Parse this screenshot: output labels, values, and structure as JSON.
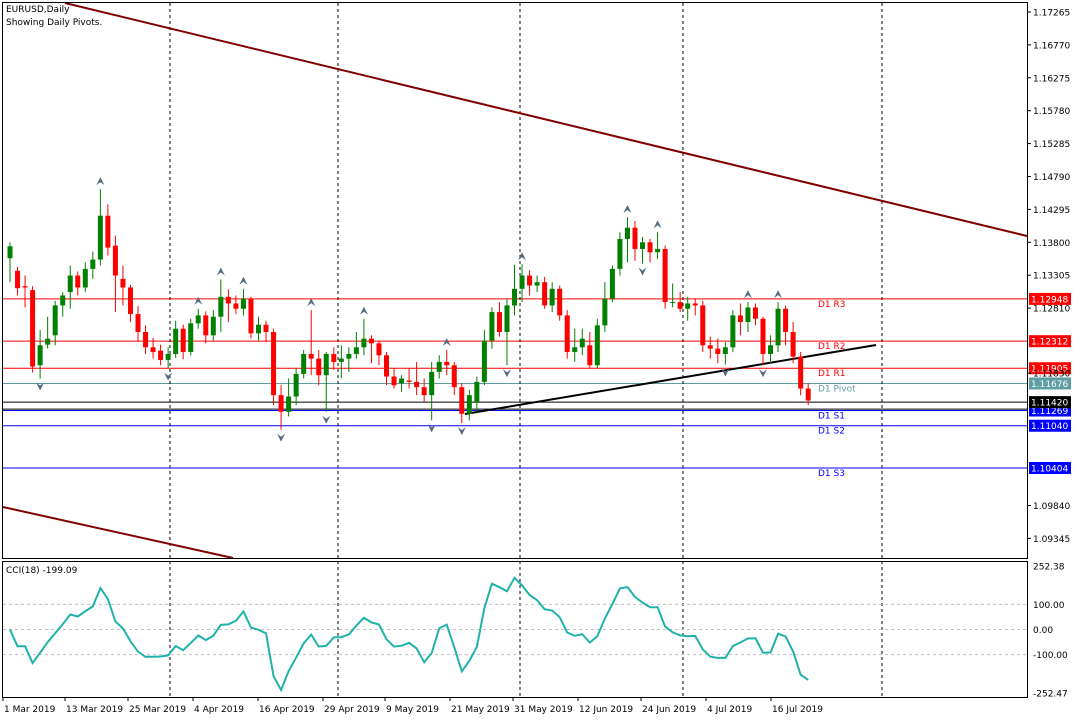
{
  "header": {
    "symbol_line": "EURUSD,Daily",
    "subtitle": "Showing Daily Pivots."
  },
  "indicator": {
    "label": "CCI(18) -199.09",
    "ticks": [
      "252.38",
      "100.00",
      "0.00",
      "-100.00",
      "-252.47"
    ],
    "tick_values": [
      252.38,
      100,
      0,
      -100,
      -252.47
    ],
    "line_color": "#20b2aa"
  },
  "colors": {
    "bull": "#008000",
    "bear": "#ff0000",
    "trendline": "#800000",
    "support_line": "#000000",
    "pivot": "#5f9ea0",
    "resistance": "#ff0000",
    "support": "#0000ff"
  },
  "chart_data": {
    "type": "candlestick",
    "title": "EURUSD,Daily",
    "ylim": [
      1.0905,
      1.174
    ],
    "x_labels": [
      "1 Mar 2019",
      "13 Mar 2019",
      "25 Mar 2019",
      "4 Apr 2019",
      "16 Apr 2019",
      "29 Apr 2019",
      "9 May 2019",
      "21 May 2019",
      "31 May 2019",
      "12 Jun 2019",
      "24 Jun 2019",
      "4 Jul 2019",
      "16 Jul 2019"
    ],
    "y_ticks": [
      "1.17265",
      "1.16770",
      "1.16275",
      "1.15780",
      "1.15285",
      "1.14790",
      "1.14295",
      "1.13800",
      "1.13305",
      "1.12810",
      "1.11830",
      "1.09840",
      "1.09345"
    ],
    "y_tick_values": [
      1.17265,
      1.1677,
      1.16275,
      1.1578,
      1.15285,
      1.1479,
      1.14295,
      1.138,
      1.13305,
      1.1281,
      1.1183,
      1.0984,
      1.09345
    ],
    "pivot_levels": [
      {
        "name": "D1 R3",
        "value": 1.12948,
        "label": "1.12948"
      },
      {
        "name": "D1 R2",
        "value": 1.12312,
        "label": "1.12312"
      },
      {
        "name": "D1 R1",
        "value": 1.11905,
        "label": "1.11905"
      },
      {
        "name": "D1 Pivot",
        "value": 1.11676,
        "label": "1.11676"
      },
      {
        "name": "D1 S1",
        "value": 1.11269,
        "label": "1.11269"
      },
      {
        "name": "D1 S2",
        "value": 1.1104,
        "label": "1.11040"
      },
      {
        "name": "D1 S3",
        "value": 1.10404,
        "label": "1.10404"
      }
    ],
    "current_price": "1.11420",
    "candles": [
      {
        "o": 1.1356,
        "h": 1.138,
        "l": 1.132,
        "c": 1.1374
      },
      {
        "o": 1.1337,
        "h": 1.1343,
        "l": 1.13,
        "c": 1.1311
      },
      {
        "o": 1.1314,
        "h": 1.133,
        "l": 1.1282,
        "c": 1.1312
      },
      {
        "o": 1.1308,
        "h": 1.1314,
        "l": 1.1184,
        "c": 1.1193
      },
      {
        "o": 1.1195,
        "h": 1.1248,
        "l": 1.1175,
        "c": 1.1225
      },
      {
        "o": 1.1226,
        "h": 1.1268,
        "l": 1.122,
        "c": 1.1235
      },
      {
        "o": 1.124,
        "h": 1.1292,
        "l": 1.1225,
        "c": 1.1285
      },
      {
        "o": 1.1285,
        "h": 1.1305,
        "l": 1.1268,
        "c": 1.13
      },
      {
        "o": 1.1305,
        "h": 1.1345,
        "l": 1.128,
        "c": 1.133
      },
      {
        "o": 1.133,
        "h": 1.1336,
        "l": 1.13,
        "c": 1.1312
      },
      {
        "o": 1.1312,
        "h": 1.135,
        "l": 1.1305,
        "c": 1.134
      },
      {
        "o": 1.134,
        "h": 1.1366,
        "l": 1.1325,
        "c": 1.1354
      },
      {
        "o": 1.1354,
        "h": 1.146,
        "l": 1.1345,
        "c": 1.142
      },
      {
        "o": 1.142,
        "h": 1.1437,
        "l": 1.136,
        "c": 1.1372
      },
      {
        "o": 1.1375,
        "h": 1.139,
        "l": 1.1275,
        "c": 1.133
      },
      {
        "o": 1.1325,
        "h": 1.1345,
        "l": 1.1285,
        "c": 1.1312
      },
      {
        "o": 1.1312,
        "h": 1.1316,
        "l": 1.126,
        "c": 1.1272
      },
      {
        "o": 1.1272,
        "h": 1.1284,
        "l": 1.123,
        "c": 1.1245
      },
      {
        "o": 1.1245,
        "h": 1.1255,
        "l": 1.1212,
        "c": 1.1222
      },
      {
        "o": 1.1222,
        "h": 1.1236,
        "l": 1.1205,
        "c": 1.1215
      },
      {
        "o": 1.1217,
        "h": 1.1226,
        "l": 1.1195,
        "c": 1.1203
      },
      {
        "o": 1.1203,
        "h": 1.1222,
        "l": 1.119,
        "c": 1.1212
      },
      {
        "o": 1.1212,
        "h": 1.1262,
        "l": 1.1206,
        "c": 1.125
      },
      {
        "o": 1.125,
        "h": 1.1256,
        "l": 1.1204,
        "c": 1.1215
      },
      {
        "o": 1.1215,
        "h": 1.1265,
        "l": 1.121,
        "c": 1.1258
      },
      {
        "o": 1.1258,
        "h": 1.128,
        "l": 1.125,
        "c": 1.127
      },
      {
        "o": 1.127,
        "h": 1.1276,
        "l": 1.1228,
        "c": 1.124
      },
      {
        "o": 1.124,
        "h": 1.1278,
        "l": 1.1232,
        "c": 1.1268
      },
      {
        "o": 1.1268,
        "h": 1.1324,
        "l": 1.1245,
        "c": 1.1298
      },
      {
        "o": 1.1298,
        "h": 1.1309,
        "l": 1.126,
        "c": 1.1288
      },
      {
        "o": 1.1288,
        "h": 1.13,
        "l": 1.1272,
        "c": 1.128
      },
      {
        "o": 1.128,
        "h": 1.131,
        "l": 1.127,
        "c": 1.1295
      },
      {
        "o": 1.1295,
        "h": 1.1298,
        "l": 1.1235,
        "c": 1.1243
      },
      {
        "o": 1.1243,
        "h": 1.1268,
        "l": 1.1232,
        "c": 1.1256
      },
      {
        "o": 1.1256,
        "h": 1.1262,
        "l": 1.123,
        "c": 1.1245
      },
      {
        "o": 1.1245,
        "h": 1.125,
        "l": 1.1135,
        "c": 1.115
      },
      {
        "o": 1.115,
        "h": 1.1165,
        "l": 1.1098,
        "c": 1.1125
      },
      {
        "o": 1.1125,
        "h": 1.1175,
        "l": 1.1118,
        "c": 1.1148
      },
      {
        "o": 1.1148,
        "h": 1.119,
        "l": 1.1135,
        "c": 1.1182
      },
      {
        "o": 1.1182,
        "h": 1.1218,
        "l": 1.1175,
        "c": 1.1212
      },
      {
        "o": 1.1212,
        "h": 1.1278,
        "l": 1.118,
        "c": 1.1205
      },
      {
        "o": 1.1205,
        "h": 1.1218,
        "l": 1.1165,
        "c": 1.118
      },
      {
        "o": 1.118,
        "h": 1.1215,
        "l": 1.1125,
        "c": 1.1212
      },
      {
        "o": 1.1212,
        "h": 1.1222,
        "l": 1.1188,
        "c": 1.12
      },
      {
        "o": 1.12,
        "h": 1.1225,
        "l": 1.1175,
        "c": 1.1205
      },
      {
        "o": 1.1205,
        "h": 1.1222,
        "l": 1.1185,
        "c": 1.1212
      },
      {
        "o": 1.1212,
        "h": 1.1245,
        "l": 1.1205,
        "c": 1.1222
      },
      {
        "o": 1.1222,
        "h": 1.1265,
        "l": 1.121,
        "c": 1.1235
      },
      {
        "o": 1.1235,
        "h": 1.124,
        "l": 1.1198,
        "c": 1.1228
      },
      {
        "o": 1.1228,
        "h": 1.1232,
        "l": 1.1195,
        "c": 1.121
      },
      {
        "o": 1.121,
        "h": 1.1215,
        "l": 1.1165,
        "c": 1.1178
      },
      {
        "o": 1.1178,
        "h": 1.119,
        "l": 1.116,
        "c": 1.1165
      },
      {
        "o": 1.1168,
        "h": 1.118,
        "l": 1.1155,
        "c": 1.1175
      },
      {
        "o": 1.1172,
        "h": 1.119,
        "l": 1.116,
        "c": 1.117
      },
      {
        "o": 1.117,
        "h": 1.12,
        "l": 1.115,
        "c": 1.1162
      },
      {
        "o": 1.1162,
        "h": 1.1175,
        "l": 1.114,
        "c": 1.115
      },
      {
        "o": 1.115,
        "h": 1.12,
        "l": 1.1112,
        "c": 1.1185
      },
      {
        "o": 1.1185,
        "h": 1.121,
        "l": 1.1175,
        "c": 1.12
      },
      {
        "o": 1.12,
        "h": 1.1218,
        "l": 1.118,
        "c": 1.1195
      },
      {
        "o": 1.1195,
        "h": 1.12,
        "l": 1.115,
        "c": 1.1162
      },
      {
        "o": 1.1162,
        "h": 1.1168,
        "l": 1.1108,
        "c": 1.1122
      },
      {
        "o": 1.1122,
        "h": 1.1158,
        "l": 1.1112,
        "c": 1.115
      },
      {
        "o": 1.114,
        "h": 1.1178,
        "l": 1.1125,
        "c": 1.117
      },
      {
        "o": 1.117,
        "h": 1.1248,
        "l": 1.1165,
        "c": 1.1232
      },
      {
        "o": 1.1232,
        "h": 1.1282,
        "l": 1.122,
        "c": 1.1275
      },
      {
        "o": 1.1275,
        "h": 1.129,
        "l": 1.1238,
        "c": 1.1245
      },
      {
        "o": 1.1245,
        "h": 1.1295,
        "l": 1.1195,
        "c": 1.1285
      },
      {
        "o": 1.1285,
        "h": 1.1346,
        "l": 1.127,
        "c": 1.131
      },
      {
        "o": 1.131,
        "h": 1.1347,
        "l": 1.129,
        "c": 1.133
      },
      {
        "o": 1.133,
        "h": 1.1338,
        "l": 1.13,
        "c": 1.1315
      },
      {
        "o": 1.1315,
        "h": 1.133,
        "l": 1.1305,
        "c": 1.132
      },
      {
        "o": 1.132,
        "h": 1.1328,
        "l": 1.128,
        "c": 1.1285
      },
      {
        "o": 1.1285,
        "h": 1.132,
        "l": 1.1275,
        "c": 1.131
      },
      {
        "o": 1.131,
        "h": 1.1315,
        "l": 1.1262,
        "c": 1.127
      },
      {
        "o": 1.127,
        "h": 1.1278,
        "l": 1.1205,
        "c": 1.1215
      },
      {
        "o": 1.1215,
        "h": 1.125,
        "l": 1.12,
        "c": 1.1222
      },
      {
        "o": 1.1222,
        "h": 1.125,
        "l": 1.121,
        "c": 1.1235
      },
      {
        "o": 1.1225,
        "h": 1.1245,
        "l": 1.119,
        "c": 1.1195
      },
      {
        "o": 1.1195,
        "h": 1.1265,
        "l": 1.119,
        "c": 1.1255
      },
      {
        "o": 1.1255,
        "h": 1.132,
        "l": 1.1245,
        "c": 1.1295
      },
      {
        "o": 1.1295,
        "h": 1.1345,
        "l": 1.129,
        "c": 1.134
      },
      {
        "o": 1.134,
        "h": 1.1395,
        "l": 1.133,
        "c": 1.1385
      },
      {
        "o": 1.1385,
        "h": 1.1418,
        "l": 1.135,
        "c": 1.1402
      },
      {
        "o": 1.1402,
        "h": 1.1412,
        "l": 1.1352,
        "c": 1.137
      },
      {
        "o": 1.137,
        "h": 1.1388,
        "l": 1.1348,
        "c": 1.138
      },
      {
        "o": 1.138,
        "h": 1.1385,
        "l": 1.135,
        "c": 1.1365
      },
      {
        "o": 1.1365,
        "h": 1.1395,
        "l": 1.1355,
        "c": 1.137
      },
      {
        "o": 1.137,
        "h": 1.1375,
        "l": 1.128,
        "c": 1.129
      },
      {
        "o": 1.129,
        "h": 1.1318,
        "l": 1.1282,
        "c": 1.129
      },
      {
        "o": 1.129,
        "h": 1.1305,
        "l": 1.1275,
        "c": 1.128
      },
      {
        "o": 1.128,
        "h": 1.1298,
        "l": 1.1262,
        "c": 1.1288
      },
      {
        "o": 1.1288,
        "h": 1.1296,
        "l": 1.127,
        "c": 1.1285
      },
      {
        "o": 1.1285,
        "h": 1.1292,
        "l": 1.1215,
        "c": 1.1225
      },
      {
        "o": 1.1225,
        "h": 1.1238,
        "l": 1.1205,
        "c": 1.122
      },
      {
        "o": 1.122,
        "h": 1.1235,
        "l": 1.1198,
        "c": 1.1212
      },
      {
        "o": 1.1212,
        "h": 1.123,
        "l": 1.1196,
        "c": 1.1222
      },
      {
        "o": 1.1222,
        "h": 1.1278,
        "l": 1.1215,
        "c": 1.127
      },
      {
        "o": 1.127,
        "h": 1.1288,
        "l": 1.124,
        "c": 1.126
      },
      {
        "o": 1.126,
        "h": 1.129,
        "l": 1.1245,
        "c": 1.1282
      },
      {
        "o": 1.1282,
        "h": 1.1288,
        "l": 1.1255,
        "c": 1.1265
      },
      {
        "o": 1.1265,
        "h": 1.1268,
        "l": 1.1195,
        "c": 1.1212
      },
      {
        "o": 1.1212,
        "h": 1.124,
        "l": 1.1198,
        "c": 1.1225
      },
      {
        "o": 1.1225,
        "h": 1.129,
        "l": 1.1215,
        "c": 1.128
      },
      {
        "o": 1.128,
        "h": 1.1285,
        "l": 1.1225,
        "c": 1.1245
      },
      {
        "o": 1.1245,
        "h": 1.126,
        "l": 1.1198,
        "c": 1.1208
      },
      {
        "o": 1.1208,
        "h": 1.1215,
        "l": 1.115,
        "c": 1.116
      },
      {
        "o": 1.116,
        "h": 1.1168,
        "l": 1.1135,
        "c": 1.1142
      }
    ]
  }
}
